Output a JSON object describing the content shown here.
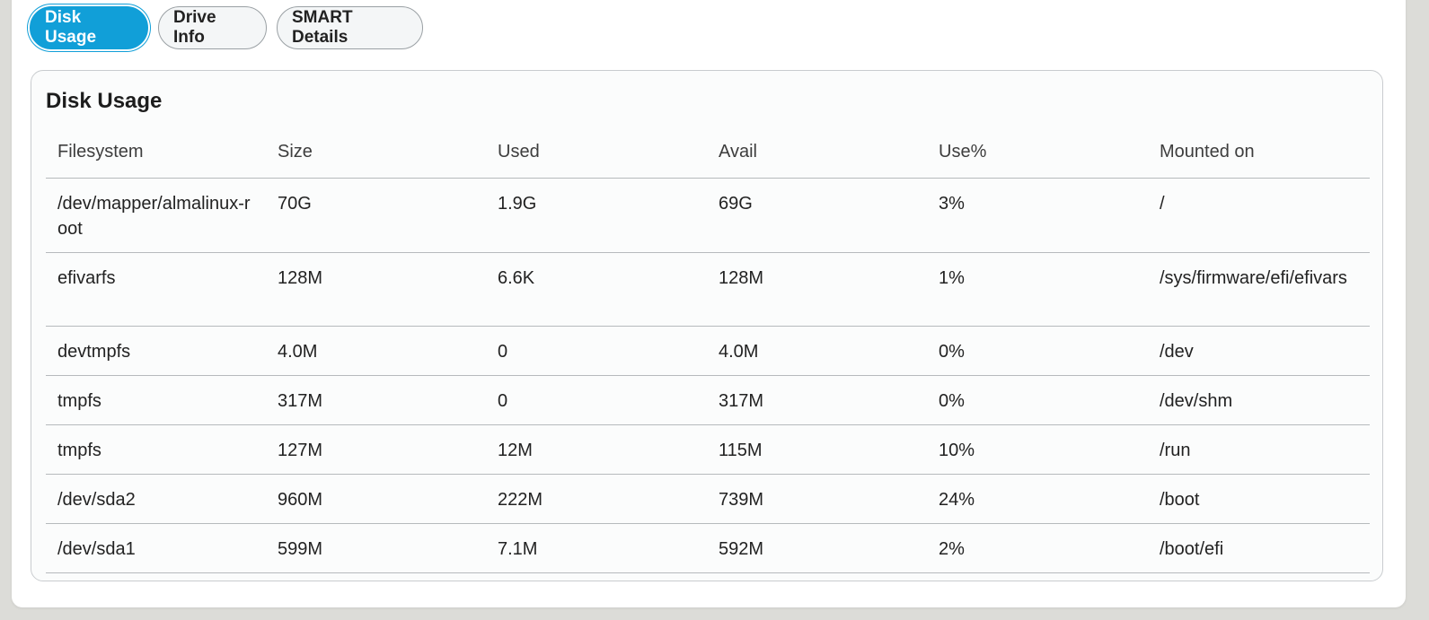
{
  "tabs": [
    {
      "label": "Disk Usage",
      "active": true
    },
    {
      "label": "Drive Info",
      "active": false
    },
    {
      "label": "SMART Details",
      "active": false
    }
  ],
  "card": {
    "title": "Disk Usage"
  },
  "table": {
    "headers": [
      "Filesystem",
      "Size",
      "Used",
      "Avail",
      "Use%",
      "Mounted on"
    ],
    "rows": [
      [
        "/dev/mapper/almalinux-root",
        "70G",
        "1.9G",
        "69G",
        "3%",
        "/"
      ],
      [
        "efivarfs",
        "128M",
        "6.6K",
        "128M",
        "1%",
        "/sys/firmware/efi/efivars"
      ],
      [
        "devtmpfs",
        "4.0M",
        "0",
        "4.0M",
        "0%",
        "/dev"
      ],
      [
        "tmpfs",
        "317M",
        "0",
        "317M",
        "0%",
        "/dev/shm"
      ],
      [
        "tmpfs",
        "127M",
        "12M",
        "115M",
        "10%",
        "/run"
      ],
      [
        "/dev/sda2",
        "960M",
        "222M",
        "739M",
        "24%",
        "/boot"
      ],
      [
        "/dev/sda1",
        "599M",
        "7.1M",
        "592M",
        "2%",
        "/boot/efi"
      ]
    ]
  },
  "colors": {
    "accent": "#119fd8",
    "background": "#dcdcd8",
    "card": "#fbfcfc"
  }
}
